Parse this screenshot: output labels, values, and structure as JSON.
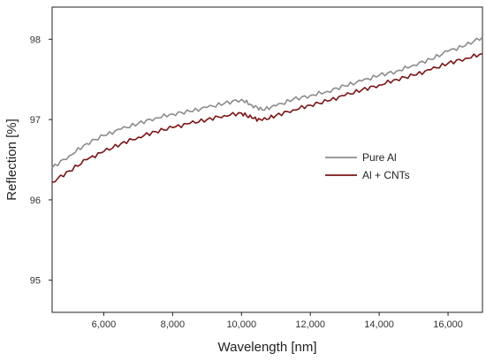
{
  "chart_data": {
    "type": "line",
    "title": "",
    "xlabel": "Wavelength [nm]",
    "ylabel": "Reflection [%]",
    "xlim": [
      4500,
      17000
    ],
    "ylim": [
      94.6,
      98.4
    ],
    "x_ticks": [
      6000,
      8000,
      10000,
      12000,
      14000,
      16000
    ],
    "x_tick_labels": [
      "6,000",
      "8,000",
      "10,000",
      "12,000",
      "14,000",
      "16,000"
    ],
    "y_ticks": [
      95,
      96,
      97,
      98
    ],
    "y_tick_labels": [
      "95",
      "96",
      "97",
      "98"
    ],
    "grid": false,
    "legend_position": "center-right",
    "x": [
      4500,
      5000,
      5500,
      6000,
      6500,
      7000,
      7500,
      8000,
      8500,
      9000,
      9500,
      10000,
      10300,
      10600,
      11000,
      11500,
      12000,
      12500,
      13000,
      13500,
      14000,
      14500,
      15000,
      15500,
      16000,
      16500,
      17000
    ],
    "series": [
      {
        "name": "Pure Al",
        "color": "#8c8c8c",
        "values": [
          96.4,
          96.55,
          96.7,
          96.8,
          96.88,
          96.95,
          97.02,
          97.07,
          97.1,
          97.15,
          97.2,
          97.25,
          97.18,
          97.12,
          97.17,
          97.25,
          97.3,
          97.35,
          97.42,
          97.48,
          97.55,
          97.6,
          97.68,
          97.75,
          97.85,
          97.92,
          98.03
        ]
      },
      {
        "name": "Al + CNTs",
        "color": "#7b1416",
        "values": [
          96.22,
          96.36,
          96.5,
          96.6,
          96.7,
          96.78,
          96.85,
          96.9,
          96.95,
          97.0,
          97.05,
          97.08,
          97.02,
          96.99,
          97.05,
          97.12,
          97.18,
          97.23,
          97.3,
          97.37,
          97.43,
          97.5,
          97.55,
          97.62,
          97.7,
          97.76,
          97.82
        ]
      }
    ]
  }
}
